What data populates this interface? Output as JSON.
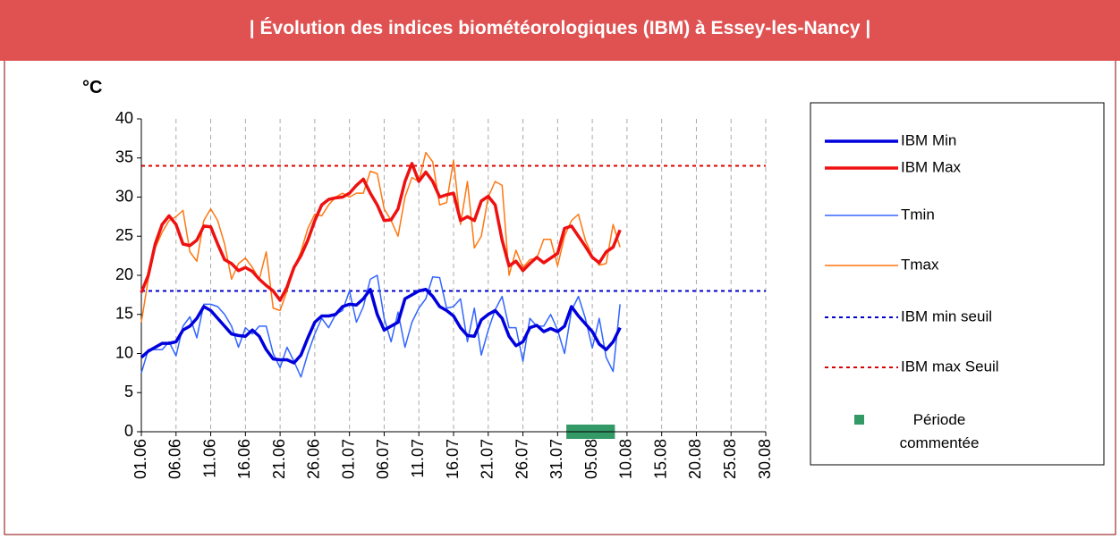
{
  "chart_data": {
    "type": "line",
    "title": "| Évolution des indices biométéorologiques (IBM) à Essey-les-Nancy |",
    "y_label": "°C",
    "categories": [
      "01.06",
      null,
      null,
      null,
      null,
      "06.06",
      null,
      null,
      null,
      null,
      "11.06",
      null,
      null,
      null,
      null,
      "16.06",
      null,
      null,
      null,
      null,
      "21.06",
      null,
      null,
      null,
      null,
      "26.06",
      null,
      null,
      null,
      null,
      "01.07",
      null,
      null,
      null,
      null,
      "06.07",
      null,
      null,
      null,
      null,
      "11.07",
      null,
      null,
      null,
      null,
      "16.07",
      null,
      null,
      null,
      null,
      "21.07",
      null,
      null,
      null,
      null,
      "26.07",
      null,
      null,
      null,
      null,
      "31.07",
      null,
      null,
      null,
      null,
      "05.08",
      null,
      null,
      null,
      null,
      "10.08",
      null,
      null,
      null,
      null,
      "15.08",
      null,
      null,
      null,
      null,
      "20.08",
      null,
      null,
      null,
      null,
      "25.08",
      null,
      null,
      null,
      null,
      "30.08"
    ],
    "ylim": [
      0,
      40
    ],
    "yticks": [
      0,
      5,
      10,
      15,
      20,
      25,
      30,
      35,
      40
    ],
    "x_grid": true,
    "series": [
      {
        "name": "IBM Min",
        "color": "#0000dd",
        "width": 3.5,
        "values": [
          9.5,
          10.3,
          10.8,
          11.3,
          11.3,
          11.5,
          13,
          13.5,
          14.5,
          16,
          15.5,
          14.5,
          13.5,
          12.5,
          12.3,
          12.2,
          13,
          12.2,
          10.5,
          9.3,
          9.2,
          9.2,
          8.8,
          9.8,
          12,
          14,
          14.8,
          14.8,
          15,
          16,
          16.3,
          16.2,
          17,
          18.2,
          15,
          13,
          13.5,
          14,
          17,
          17.5,
          18,
          18.2,
          17.3,
          16,
          15.5,
          14.8,
          13.3,
          12.3,
          12.2,
          14.3,
          15,
          15.5,
          14.5,
          12.2,
          11,
          11.5,
          13.3,
          13.6,
          12.8,
          13.2,
          12.8,
          13.5,
          16,
          14.8,
          13.8,
          12.8,
          11.2,
          10.5,
          11.5,
          13.3,
          null,
          null,
          null,
          null,
          null,
          null,
          null,
          null,
          null,
          null,
          null,
          null,
          null,
          null,
          null,
          null,
          null,
          null,
          null,
          null,
          null
        ]
      },
      {
        "name": "IBM Max",
        "color": "#ee1111",
        "width": 3.5,
        "values": [
          17.8,
          20,
          24,
          26.5,
          27.6,
          26.5,
          24,
          23.8,
          24.5,
          26.3,
          26.2,
          24,
          22,
          21.5,
          20.6,
          21,
          20.5,
          19.5,
          18.7,
          18,
          16.8,
          18.5,
          21,
          22.5,
          24.5,
          27,
          29,
          29.7,
          29.9,
          30,
          30.5,
          31.5,
          32.3,
          30.5,
          29,
          27,
          27.1,
          28.5,
          32,
          34.3,
          32,
          33.2,
          32,
          30,
          30.3,
          30.5,
          27,
          27.5,
          27,
          29.5,
          30.1,
          29,
          24.5,
          21.2,
          21.8,
          20.6,
          21.5,
          22.3,
          21.6,
          22.2,
          22.8,
          26,
          26.3,
          25,
          23.7,
          22.3,
          21.6,
          23,
          23.6,
          25.8,
          null,
          null,
          null,
          null,
          null,
          null,
          null,
          null,
          null,
          null,
          null,
          null,
          null,
          null,
          null,
          null,
          null,
          null,
          null,
          null,
          null
        ]
      },
      {
        "name": "Tmin",
        "color": "#3366ff",
        "width": 1.5,
        "values": [
          7.5,
          10.5,
          10.5,
          10.5,
          11.5,
          9.7,
          13.5,
          14.7,
          12,
          16.3,
          16.3,
          16,
          15,
          13.5,
          10.8,
          13.3,
          12.5,
          13.5,
          13.5,
          10,
          8.2,
          10.8,
          9,
          7,
          10,
          12.5,
          14.5,
          13.3,
          15,
          15.5,
          18,
          14,
          16,
          19.5,
          20,
          14.5,
          11.5,
          15.3,
          10.8,
          14,
          15.8,
          17,
          19.8,
          19.7,
          15.8,
          16,
          17,
          11.5,
          15.8,
          9.8,
          13,
          15.6,
          17.3,
          13.3,
          13.3,
          9,
          14.5,
          13.5,
          13.5,
          15,
          13,
          10,
          15.5,
          17.3,
          14.5,
          10.7,
          14.5,
          9.5,
          7.7,
          16.3,
          null,
          null,
          null,
          null,
          null,
          null,
          null,
          null,
          null,
          null,
          null,
          null,
          null,
          null,
          null,
          null,
          null,
          null,
          null,
          null,
          null
        ]
      },
      {
        "name": "Tmax",
        "color": "#ff7711",
        "width": 1.5,
        "values": [
          14,
          19.5,
          23.5,
          25.5,
          27,
          27.5,
          28.3,
          23,
          21.8,
          27,
          28.5,
          27,
          24,
          19.5,
          21.5,
          22.2,
          21,
          19.5,
          23,
          15.8,
          15.5,
          18,
          21,
          23,
          26,
          27.8,
          27.6,
          29,
          30,
          30.5,
          30,
          30.5,
          30.5,
          33.3,
          33,
          28.5,
          27,
          25,
          30,
          32.5,
          32,
          35.7,
          34.5,
          29,
          29.3,
          34.7,
          26.5,
          32,
          23.5,
          25,
          30,
          32,
          31.5,
          20,
          23.2,
          21,
          22,
          22.2,
          24.6,
          24.6,
          21.2,
          25,
          27,
          27.8,
          24.5,
          22.5,
          21.3,
          21.5,
          26.5,
          23.6,
          null,
          null,
          null,
          null,
          null,
          null,
          null,
          null,
          null,
          null,
          null,
          null,
          null,
          null,
          null,
          null,
          null,
          null,
          null,
          null,
          null
        ]
      }
    ],
    "thresholds": [
      {
        "name": "IBM min seuil",
        "color": "#0000cc",
        "value": 18
      },
      {
        "name": "IBM max Seuil",
        "color": "#dd0000",
        "value": 34
      }
    ],
    "period": {
      "name": "Période commentée",
      "color": "#339966",
      "start": 61,
      "end": 68
    }
  }
}
